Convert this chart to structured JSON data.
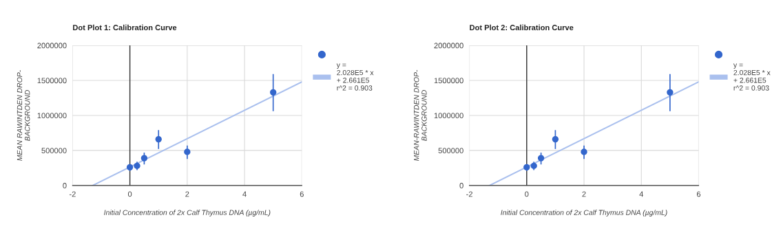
{
  "chart_data": [
    {
      "type": "scatter",
      "title": "Dot Plot 1: Calibration Curve",
      "xlabel": "Initial Concentration of 2x Calf Thymus DNA (µg/mL)",
      "ylabel": "MEAN RAWINTDEN DROP-\nBACKGROUND",
      "xlim": [
        -2,
        6
      ],
      "xticks": [
        -2,
        0,
        2,
        4,
        6
      ],
      "ylim": [
        0,
        2000000
      ],
      "yticks": [
        0,
        500000,
        1000000,
        1500000,
        2000000
      ],
      "grid": true,
      "legend": "right",
      "ref_lines": [
        {
          "axis": "x",
          "value": 0,
          "color": "#333333"
        }
      ],
      "series": [
        {
          "marker": "circle",
          "color": "#3366cc",
          "x": [
            0,
            0.25,
            0.5,
            1,
            2,
            5
          ],
          "values": [
            260000,
            280000,
            390000,
            660000,
            480000,
            1330000
          ],
          "errors": [
            [
              210000,
              300000
            ],
            [
              220000,
              340000
            ],
            [
              300000,
              470000
            ],
            [
              520000,
              790000
            ],
            [
              380000,
              570000
            ],
            [
              1060000,
              1590000
            ]
          ]
        },
        {
          "type": "line",
          "name": "y =\n2.028E5 * x\n+ 2.661E5\nr^2 = 0.903",
          "color": "#aac0ee",
          "x": [
            -1.3,
            6
          ],
          "values": [
            0,
            1480000
          ]
        }
      ]
    },
    {
      "type": "scatter",
      "title": "Dot Plot 2: Calibration Curve",
      "xlabel": "Initial Concentration of 2x Calf Thymus DNA (µg/mL)",
      "ylabel": "MEAN-RAWINTDEN DROP-\nBACKGROUND",
      "xlim": [
        -2,
        6
      ],
      "xticks": [
        -2,
        0,
        2,
        4,
        6
      ],
      "ylim": [
        0,
        2000000
      ],
      "yticks": [
        0,
        500000,
        1000000,
        1500000,
        2000000
      ],
      "grid": true,
      "legend": "right",
      "ref_lines": [
        {
          "axis": "x",
          "value": 0,
          "color": "#333333"
        }
      ],
      "series": [
        {
          "marker": "circle",
          "color": "#3366cc",
          "x": [
            0,
            0.25,
            0.5,
            1,
            2,
            5
          ],
          "values": [
            260000,
            280000,
            390000,
            660000,
            480000,
            1330000
          ],
          "errors": [
            [
              210000,
              300000
            ],
            [
              220000,
              340000
            ],
            [
              300000,
              470000
            ],
            [
              520000,
              790000
            ],
            [
              380000,
              570000
            ],
            [
              1060000,
              1590000
            ]
          ]
        },
        {
          "type": "line",
          "name": "y =\n2.028E5 * x\n+ 2.661E5\nr^2 = 0.903",
          "color": "#aac0ee",
          "x": [
            -1.3,
            6
          ],
          "values": [
            0,
            1480000
          ]
        }
      ]
    }
  ]
}
